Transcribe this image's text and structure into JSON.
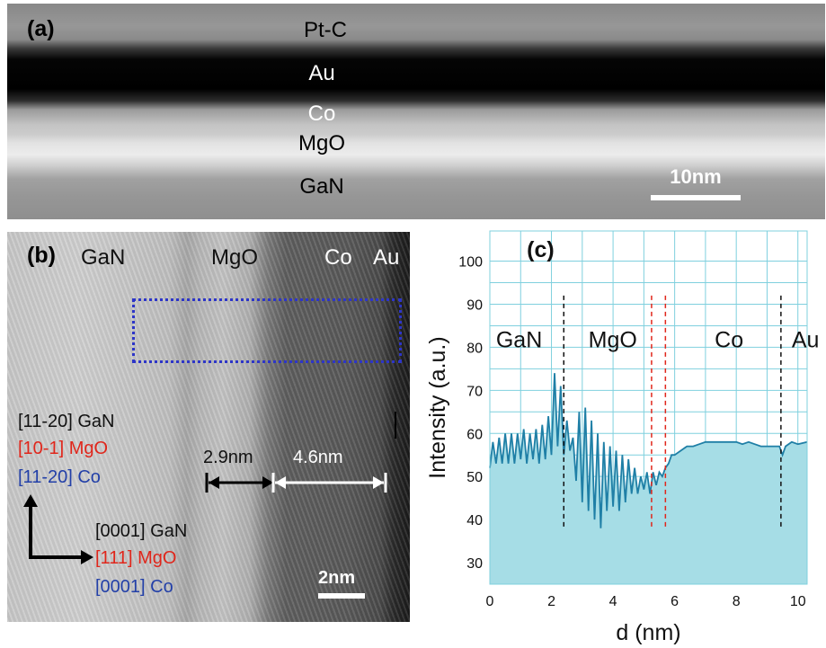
{
  "panel_a": {
    "letter": "(a)",
    "layers": [
      "Pt-C",
      "Au",
      "Co",
      "MgO",
      "GaN"
    ],
    "scalebar": "10nm"
  },
  "panel_b": {
    "letter": "(b)",
    "region_labels": [
      "GaN",
      "MgO",
      "Co",
      "Au"
    ],
    "orientation_1": [
      {
        "text": "[11-20] GaN",
        "color": "#111111"
      },
      {
        "text": "[10-1]   MgO",
        "color": "#e0261b"
      },
      {
        "text": "[11-20] Co",
        "color": "#2340a8"
      }
    ],
    "orientation_2": [
      {
        "text": "[0001] GaN",
        "color": "#111111"
      },
      {
        "text": "[111]    MgO",
        "color": "#e0261b"
      },
      {
        "text": "[0001] Co",
        "color": "#2340a8"
      }
    ],
    "measure_mgo": "2.9nm",
    "measure_co": "4.6nm",
    "scalebar": "2nm",
    "roi_color": "#2d35c8"
  },
  "chart_data": {
    "type": "area",
    "letter": "(c)",
    "xlabel": "d (nm)",
    "ylabel": "Intensity (a.u.)",
    "xlim": [
      0,
      10.3
    ],
    "ylim": [
      25,
      107
    ],
    "xticks": [
      0,
      2,
      4,
      6,
      8,
      10
    ],
    "yticks": [
      30,
      40,
      50,
      60,
      70,
      80,
      90,
      100
    ],
    "grid": true,
    "line_color": "#1f7fa6",
    "fill_color": "#a6dde6",
    "grid_color": "#7fd0de",
    "region_labels": [
      {
        "text": "GaN",
        "x": 0.2
      },
      {
        "text": "MgO",
        "x": 3.2
      },
      {
        "text": "Co",
        "x": 7.3
      },
      {
        "text": "Au",
        "x": 9.8
      }
    ],
    "boundaries": [
      {
        "x": 2.4,
        "color": "#111111"
      },
      {
        "x": 5.25,
        "color": "#e0261b"
      },
      {
        "x": 5.7,
        "color": "#e0261b"
      },
      {
        "x": 9.45,
        "color": "#111111"
      }
    ],
    "boundary_y": [
      38,
      92
    ],
    "profile": [
      [
        0.0,
        52
      ],
      [
        0.1,
        58
      ],
      [
        0.2,
        53
      ],
      [
        0.3,
        59
      ],
      [
        0.4,
        53
      ],
      [
        0.5,
        60
      ],
      [
        0.6,
        53
      ],
      [
        0.7,
        60
      ],
      [
        0.8,
        53
      ],
      [
        0.9,
        60
      ],
      [
        1.0,
        54
      ],
      [
        1.1,
        61
      ],
      [
        1.2,
        53
      ],
      [
        1.3,
        60
      ],
      [
        1.4,
        54
      ],
      [
        1.5,
        61
      ],
      [
        1.6,
        53
      ],
      [
        1.7,
        62
      ],
      [
        1.8,
        54
      ],
      [
        1.9,
        64
      ],
      [
        2.0,
        55
      ],
      [
        2.1,
        74
      ],
      [
        2.2,
        57
      ],
      [
        2.3,
        71
      ],
      [
        2.4,
        55
      ],
      [
        2.5,
        63
      ],
      [
        2.6,
        56
      ],
      [
        2.7,
        59
      ],
      [
        2.8,
        49
      ],
      [
        2.9,
        65
      ],
      [
        3.0,
        44
      ],
      [
        3.1,
        66
      ],
      [
        3.2,
        42
      ],
      [
        3.3,
        63
      ],
      [
        3.4,
        40
      ],
      [
        3.5,
        60
      ],
      [
        3.6,
        38
      ],
      [
        3.7,
        58
      ],
      [
        3.8,
        42
      ],
      [
        3.9,
        57
      ],
      [
        4.0,
        43
      ],
      [
        4.1,
        56
      ],
      [
        4.2,
        42
      ],
      [
        4.3,
        55
      ],
      [
        4.4,
        44
      ],
      [
        4.5,
        54
      ],
      [
        4.6,
        46
      ],
      [
        4.7,
        52
      ],
      [
        4.8,
        46
      ],
      [
        4.9,
        50
      ],
      [
        5.0,
        47
      ],
      [
        5.1,
        51
      ],
      [
        5.2,
        46
      ],
      [
        5.3,
        51
      ],
      [
        5.4,
        48
      ],
      [
        5.5,
        51
      ],
      [
        5.6,
        50
      ],
      [
        5.7,
        52
      ],
      [
        5.8,
        53
      ],
      [
        5.9,
        55
      ],
      [
        6.0,
        55
      ],
      [
        6.2,
        56
      ],
      [
        6.4,
        57
      ],
      [
        6.6,
        57
      ],
      [
        6.8,
        57.5
      ],
      [
        7.0,
        58
      ],
      [
        7.2,
        58
      ],
      [
        7.4,
        58
      ],
      [
        7.6,
        58
      ],
      [
        7.8,
        58
      ],
      [
        8.0,
        58
      ],
      [
        8.2,
        57.5
      ],
      [
        8.4,
        58
      ],
      [
        8.6,
        57.5
      ],
      [
        8.8,
        57
      ],
      [
        9.0,
        57
      ],
      [
        9.2,
        57
      ],
      [
        9.4,
        57
      ],
      [
        9.5,
        55
      ],
      [
        9.6,
        57
      ],
      [
        9.8,
        58
      ],
      [
        10.0,
        57.5
      ],
      [
        10.3,
        58
      ]
    ]
  }
}
